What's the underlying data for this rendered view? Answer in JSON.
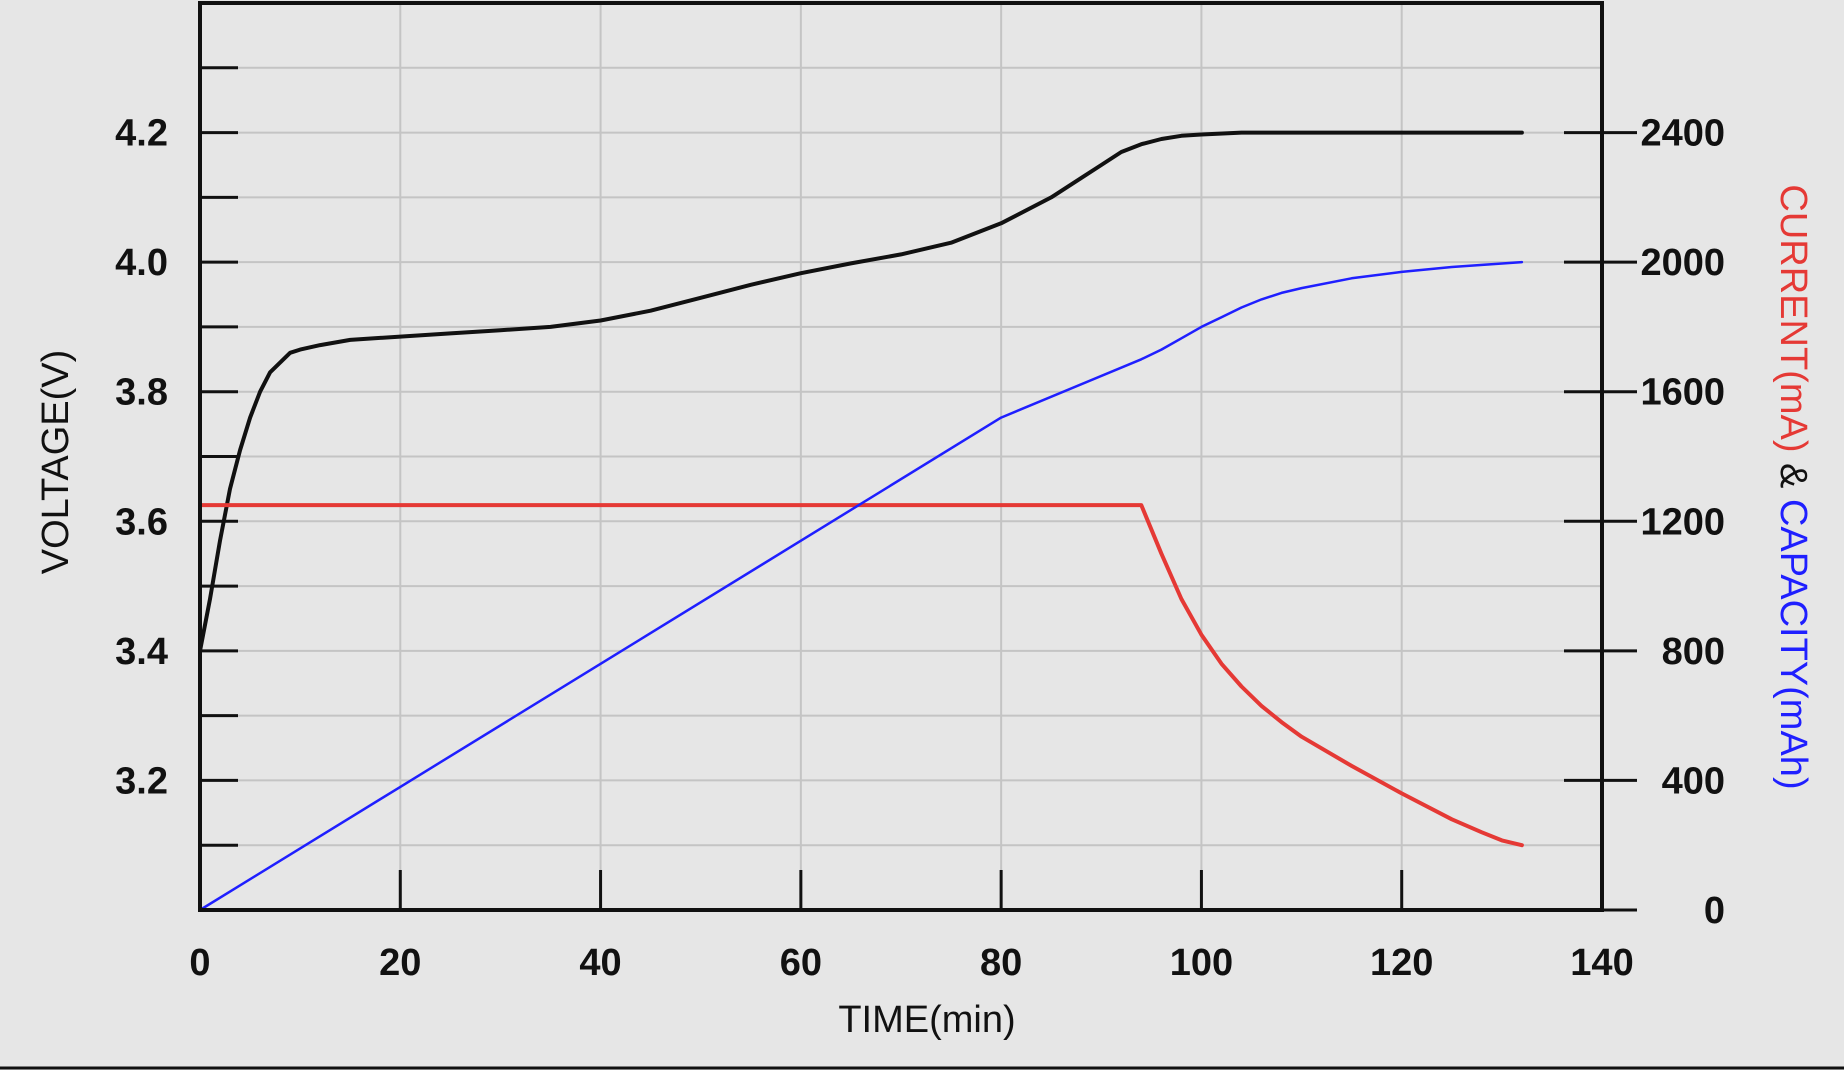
{
  "chart_data": {
    "type": "line",
    "x": {
      "label": "TIME(min)",
      "range": [
        0,
        140
      ],
      "ticks": [
        0,
        20,
        40,
        60,
        80,
        100,
        120,
        140
      ],
      "tick_labels": [
        "0",
        "20",
        "40",
        "60",
        "80",
        "100",
        "120",
        "140"
      ]
    },
    "y_left": {
      "label": "VOLTAGE(V)",
      "range": [
        3.0,
        4.4
      ],
      "ticks": [
        3.2,
        3.4,
        3.6,
        3.8,
        4.0,
        4.2
      ],
      "tick_labels": [
        "3.2",
        "3.4",
        "3.6",
        "3.8",
        "4.0",
        "4.2"
      ]
    },
    "y_right": {
      "label_parts": [
        {
          "text": "CURRENT(mA)",
          "color": "#e53935"
        },
        {
          "text": " & ",
          "color": "#111111"
        },
        {
          "text": "CAPACITY(mAh)",
          "color": "#1f1fff"
        }
      ],
      "range": [
        0,
        2800
      ],
      "ticks": [
        0,
        400,
        800,
        1200,
        1600,
        2000,
        2400
      ],
      "tick_labels": [
        "0",
        "400",
        "800",
        "1200",
        "1600",
        "2000",
        "2400"
      ]
    },
    "grid": true,
    "series": [
      {
        "name": "Voltage",
        "axis": "left",
        "color": "#111111",
        "x": [
          0,
          1,
          2,
          3,
          4,
          5,
          6,
          7,
          8,
          9,
          10,
          12,
          15,
          20,
          25,
          30,
          35,
          40,
          45,
          50,
          55,
          60,
          65,
          70,
          75,
          80,
          85,
          88,
          90,
          92,
          94,
          96,
          98,
          100,
          104,
          110,
          120,
          132
        ],
        "y": [
          3.4,
          3.48,
          3.57,
          3.65,
          3.71,
          3.76,
          3.8,
          3.83,
          3.845,
          3.86,
          3.865,
          3.872,
          3.88,
          3.885,
          3.89,
          3.895,
          3.9,
          3.91,
          3.925,
          3.945,
          3.965,
          3.983,
          3.998,
          4.012,
          4.03,
          4.06,
          4.1,
          4.13,
          4.15,
          4.17,
          4.182,
          4.19,
          4.195,
          4.197,
          4.2,
          4.2,
          4.2,
          4.2
        ]
      },
      {
        "name": "Current",
        "axis": "right",
        "color": "#e53935",
        "x": [
          0,
          10,
          20,
          40,
          60,
          80,
          94,
          96,
          98,
          100,
          102,
          104,
          106,
          108,
          110,
          115,
          120,
          125,
          128,
          130,
          132
        ],
        "y": [
          1250,
          1250,
          1250,
          1250,
          1250,
          1250,
          1250,
          1100,
          960,
          850,
          760,
          690,
          630,
          580,
          535,
          445,
          360,
          280,
          240,
          215,
          200
        ]
      },
      {
        "name": "Capacity",
        "axis": "right",
        "color": "#1f1fff",
        "x": [
          0,
          20,
          40,
          60,
          80,
          94,
          96,
          98,
          100,
          102,
          104,
          106,
          108,
          110,
          115,
          120,
          125,
          132
        ],
        "y": [
          0,
          380,
          760,
          1140,
          1520,
          1700,
          1730,
          1765,
          1800,
          1830,
          1860,
          1885,
          1905,
          1920,
          1950,
          1970,
          1985,
          2000
        ]
      }
    ]
  }
}
